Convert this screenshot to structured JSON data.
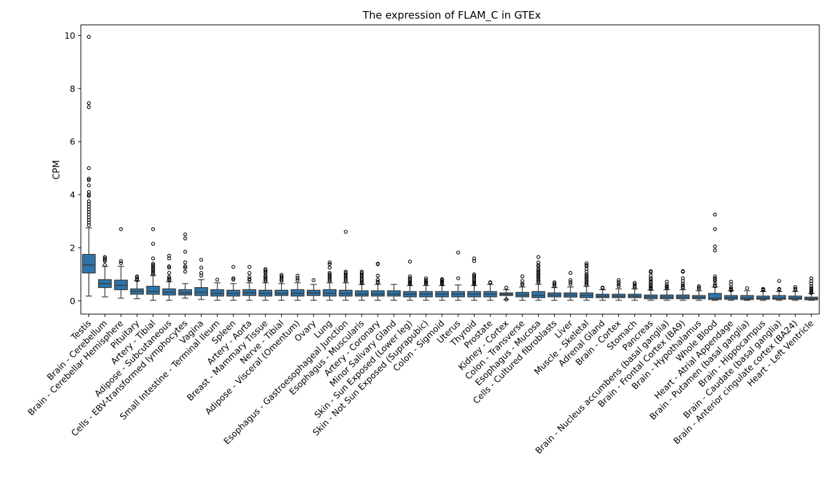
{
  "chart_data": {
    "type": "box",
    "title": "The expression of FLAM_C in GTEx",
    "xlabel": "",
    "ylabel": "CPM",
    "ylim": [
      -0.5,
      10.4
    ],
    "yticks": [
      0,
      2,
      4,
      6,
      8,
      10
    ],
    "grid": false,
    "legend": "none",
    "box_color": "#2e74aa",
    "edge_color": "#3a3a3a",
    "categories": [
      "Testis",
      "Brain - Cerebellum",
      "Brain - Cerebellar Hemisphere",
      "Pituitary",
      "Artery - Tibial",
      "Adipose - Subcutaneous",
      "Cells - EBV-transformed lymphocytes",
      "Vagina",
      "Small Intestine - Terminal Ileum",
      "Spleen",
      "Artery - Aorta",
      "Breast - Mammary Tissue",
      "Nerve - Tibial",
      "Adipose - Visceral (Omentum)",
      "Ovary",
      "Lung",
      "Esophagus - Gastroesophageal Junction",
      "Esophagus - Muscularis",
      "Artery - Coronary",
      "Minor Salivary Gland",
      "Skin - Sun Exposed (Lower leg)",
      "Skin - Not Sun Exposed (Suprapubic)",
      "Colon - Sigmoid",
      "Uterus",
      "Thyroid",
      "Prostate",
      "Kidney - Cortex",
      "Colon - Transverse",
      "Esophagus - Mucosa",
      "Cells - Cultured fibroblasts",
      "Liver",
      "Muscle - Skeletal",
      "Adrenal Gland",
      "Brain - Cortex",
      "Stomach",
      "Pancreas",
      "Brain - Nucleus accumbens (basal ganglia)",
      "Brain - Frontal Cortex (BA9)",
      "Brain - Hypothalamus",
      "Whole Blood",
      "Heart - Atrial Appendage",
      "Brain - Putamen (basal ganglia)",
      "Brain - Hippocampus",
      "Brain - Caudate (basal ganglia)",
      "Brain - Anterior cingulate cortex (BA24)",
      "Heart - Left Ventricle"
    ],
    "boxes": [
      {
        "whislo": 0.18,
        "q1": 1.05,
        "med": 1.35,
        "q3": 1.75,
        "whishi": 2.75,
        "fliers": [
          9.95,
          7.45,
          7.3,
          5.0,
          4.6,
          4.55,
          4.35,
          4.1,
          4.0,
          3.95,
          3.75,
          3.65,
          3.55,
          3.45,
          3.35,
          3.25,
          3.15,
          3.05,
          2.95,
          2.85
        ]
      },
      {
        "whislo": 0.15,
        "q1": 0.5,
        "med": 0.65,
        "q3": 0.8,
        "whishi": 1.3,
        "fliers": [
          1.65,
          1.6,
          1.55,
          1.5,
          1.35
        ]
      },
      {
        "whislo": 0.1,
        "q1": 0.42,
        "med": 0.58,
        "q3": 0.78,
        "whishi": 1.3,
        "fliers": [
          2.7,
          1.5,
          1.42
        ]
      },
      {
        "whislo": 0.08,
        "q1": 0.25,
        "med": 0.35,
        "q3": 0.45,
        "whishi": 0.75,
        "fliers": [
          0.92,
          0.88,
          0.82,
          0.78
        ]
      },
      {
        "whislo": 0.02,
        "q1": 0.25,
        "med": 0.35,
        "q3": 0.55,
        "whishi": 0.95,
        "fliers": [
          2.7,
          2.15,
          1.6,
          1.4,
          1.35,
          1.3,
          1.25,
          1.2,
          1.15,
          1.1,
          1.05,
          1.0
        ]
      },
      {
        "whislo": 0.02,
        "q1": 0.22,
        "med": 0.32,
        "q3": 0.45,
        "whishi": 0.72,
        "fliers": [
          1.7,
          1.6,
          1.3,
          1.25,
          1.05,
          0.9,
          0.85,
          0.8,
          0.78
        ]
      },
      {
        "whislo": 0.1,
        "q1": 0.22,
        "med": 0.3,
        "q3": 0.42,
        "whishi": 0.65,
        "fliers": [
          2.5,
          2.35,
          1.85,
          1.45,
          1.3,
          1.25,
          1.1
        ]
      },
      {
        "whislo": 0.05,
        "q1": 0.2,
        "med": 0.32,
        "q3": 0.5,
        "whishi": 0.8,
        "fliers": [
          1.55,
          1.25,
          1.05,
          0.95
        ]
      },
      {
        "whislo": 0.02,
        "q1": 0.18,
        "med": 0.28,
        "q3": 0.42,
        "whishi": 0.68,
        "fliers": [
          0.8
        ]
      },
      {
        "whislo": 0.02,
        "q1": 0.18,
        "med": 0.28,
        "q3": 0.4,
        "whishi": 0.65,
        "fliers": [
          1.28,
          0.85,
          0.8
        ]
      },
      {
        "whislo": 0.02,
        "q1": 0.2,
        "med": 0.3,
        "q3": 0.42,
        "whishi": 0.68,
        "fliers": [
          1.28,
          1.05,
          0.9,
          0.82,
          0.78
        ]
      },
      {
        "whislo": 0.02,
        "q1": 0.18,
        "med": 0.28,
        "q3": 0.4,
        "whishi": 0.68,
        "fliers": [
          1.2,
          1.15,
          1.1,
          1.05,
          0.95,
          0.9,
          0.85,
          0.8,
          0.75
        ]
      },
      {
        "whislo": 0.02,
        "q1": 0.2,
        "med": 0.28,
        "q3": 0.4,
        "whishi": 0.65,
        "fliers": [
          0.98,
          0.92,
          0.85,
          0.8,
          0.75
        ]
      },
      {
        "whislo": 0.02,
        "q1": 0.18,
        "med": 0.28,
        "q3": 0.42,
        "whishi": 0.68,
        "fliers": [
          0.95,
          0.85,
          0.78
        ]
      },
      {
        "whislo": 0.02,
        "q1": 0.2,
        "med": 0.3,
        "q3": 0.4,
        "whishi": 0.62,
        "fliers": [
          0.78
        ]
      },
      {
        "whislo": 0.02,
        "q1": 0.18,
        "med": 0.28,
        "q3": 0.42,
        "whishi": 0.68,
        "fliers": [
          1.45,
          1.38,
          1.25,
          1.05,
          1.0,
          0.95,
          0.9,
          0.85,
          0.8,
          0.75
        ]
      },
      {
        "whislo": 0.02,
        "q1": 0.18,
        "med": 0.28,
        "q3": 0.4,
        "whishi": 0.68,
        "fliers": [
          2.6,
          1.1,
          1.05,
          0.98,
          0.92,
          0.85,
          0.8,
          0.75
        ]
      },
      {
        "whislo": 0.02,
        "q1": 0.18,
        "med": 0.26,
        "q3": 0.38,
        "whishi": 0.62,
        "fliers": [
          1.1,
          1.05,
          0.98,
          0.92,
          0.85,
          0.8,
          0.75,
          0.7,
          0.66
        ]
      },
      {
        "whislo": 0.02,
        "q1": 0.18,
        "med": 0.26,
        "q3": 0.38,
        "whishi": 0.62,
        "fliers": [
          1.4,
          1.38,
          0.95,
          0.8,
          0.72,
          0.68
        ]
      },
      {
        "whislo": 0.02,
        "q1": 0.18,
        "med": 0.26,
        "q3": 0.38,
        "whishi": 0.62,
        "fliers": []
      },
      {
        "whislo": 0.02,
        "q1": 0.15,
        "med": 0.25,
        "q3": 0.35,
        "whishi": 0.58,
        "fliers": [
          1.48,
          0.92,
          0.85,
          0.8,
          0.75,
          0.7,
          0.66,
          0.62
        ]
      },
      {
        "whislo": 0.02,
        "q1": 0.15,
        "med": 0.25,
        "q3": 0.35,
        "whishi": 0.58,
        "fliers": [
          0.85,
          0.78,
          0.72,
          0.68,
          0.64
        ]
      },
      {
        "whislo": 0.02,
        "q1": 0.15,
        "med": 0.25,
        "q3": 0.35,
        "whishi": 0.58,
        "fliers": [
          0.82,
          0.78,
          0.74,
          0.7,
          0.66,
          0.62
        ]
      },
      {
        "whislo": 0.02,
        "q1": 0.15,
        "med": 0.25,
        "q3": 0.35,
        "whishi": 0.6,
        "fliers": [
          1.82,
          0.85
        ]
      },
      {
        "whislo": 0.02,
        "q1": 0.15,
        "med": 0.25,
        "q3": 0.35,
        "whishi": 0.58,
        "fliers": [
          1.6,
          1.5,
          1.0,
          0.95,
          0.9,
          0.85,
          0.8,
          0.75,
          0.7,
          0.66,
          0.62
        ]
      },
      {
        "whislo": 0.02,
        "q1": 0.15,
        "med": 0.25,
        "q3": 0.35,
        "whishi": 0.62,
        "fliers": [
          0.7,
          0.68
        ]
      },
      {
        "whislo": 0.05,
        "q1": 0.2,
        "med": 0.25,
        "q3": 0.3,
        "whishi": 0.42,
        "fliers": [
          0.5,
          0.05
        ]
      },
      {
        "whislo": 0.02,
        "q1": 0.15,
        "med": 0.22,
        "q3": 0.32,
        "whishi": 0.52,
        "fliers": [
          0.92,
          0.75,
          0.65,
          0.6
        ]
      },
      {
        "whislo": 0.02,
        "q1": 0.12,
        "med": 0.2,
        "q3": 0.35,
        "whishi": 0.62,
        "fliers": [
          1.65,
          1.45,
          1.35,
          1.3,
          1.2,
          1.15,
          1.1,
          1.05,
          1.0,
          0.95,
          0.9,
          0.85,
          0.8,
          0.75,
          0.7
        ]
      },
      {
        "whislo": 0.02,
        "q1": 0.15,
        "med": 0.22,
        "q3": 0.3,
        "whishi": 0.5,
        "fliers": [
          0.7,
          0.65,
          0.6,
          0.55
        ]
      },
      {
        "whislo": 0.02,
        "q1": 0.14,
        "med": 0.22,
        "q3": 0.3,
        "whishi": 0.52,
        "fliers": [
          1.05,
          0.78,
          0.7,
          0.62
        ]
      },
      {
        "whislo": 0.02,
        "q1": 0.12,
        "med": 0.2,
        "q3": 0.3,
        "whishi": 0.55,
        "fliers": [
          1.42,
          1.35,
          1.3,
          1.2,
          1.1,
          1.0,
          0.95,
          0.9,
          0.85,
          0.8,
          0.75,
          0.7,
          0.65,
          0.6
        ]
      },
      {
        "whislo": 0.02,
        "q1": 0.12,
        "med": 0.18,
        "q3": 0.25,
        "whishi": 0.42,
        "fliers": [
          0.5,
          0.48
        ]
      },
      {
        "whislo": 0.02,
        "q1": 0.12,
        "med": 0.18,
        "q3": 0.25,
        "whishi": 0.45,
        "fliers": [
          0.78,
          0.7,
          0.62,
          0.55
        ]
      },
      {
        "whislo": 0.02,
        "q1": 0.12,
        "med": 0.18,
        "q3": 0.25,
        "whishi": 0.45,
        "fliers": [
          0.68,
          0.62,
          0.55,
          0.5
        ]
      },
      {
        "whislo": 0.02,
        "q1": 0.08,
        "med": 0.15,
        "q3": 0.22,
        "whishi": 0.4,
        "fliers": [
          1.12,
          1.08,
          0.95,
          0.85,
          0.8,
          0.72,
          0.68,
          0.62,
          0.58,
          0.52,
          0.48,
          0.45
        ]
      },
      {
        "whislo": 0.02,
        "q1": 0.08,
        "med": 0.14,
        "q3": 0.22,
        "whishi": 0.42,
        "fliers": [
          0.72,
          0.62,
          0.55,
          0.52,
          0.48
        ]
      },
      {
        "whislo": 0.02,
        "q1": 0.08,
        "med": 0.14,
        "q3": 0.22,
        "whishi": 0.42,
        "fliers": [
          1.12,
          1.1,
          0.85,
          0.75,
          0.65,
          0.58,
          0.52,
          0.48
        ]
      },
      {
        "whislo": 0.02,
        "q1": 0.08,
        "med": 0.13,
        "q3": 0.2,
        "whishi": 0.38,
        "fliers": [
          0.55,
          0.5,
          0.45
        ]
      },
      {
        "whislo": 0.02,
        "q1": 0.05,
        "med": 0.1,
        "q3": 0.28,
        "whishi": 0.52,
        "fliers": [
          3.25,
          2.7,
          2.05,
          1.9,
          0.92,
          0.85,
          0.8,
          0.75,
          0.65,
          0.58,
          0.55
        ]
      },
      {
        "whislo": 0.02,
        "q1": 0.06,
        "med": 0.12,
        "q3": 0.2,
        "whishi": 0.38,
        "fliers": [
          0.72,
          0.62,
          0.5,
          0.45,
          0.42,
          0.4
        ]
      },
      {
        "whislo": 0.02,
        "q1": 0.05,
        "med": 0.1,
        "q3": 0.2,
        "whishi": 0.38,
        "fliers": [
          0.48
        ]
      },
      {
        "whislo": 0.02,
        "q1": 0.06,
        "med": 0.1,
        "q3": 0.18,
        "whishi": 0.35,
        "fliers": [
          0.45,
          0.42,
          0.4
        ]
      },
      {
        "whislo": 0.02,
        "q1": 0.06,
        "med": 0.1,
        "q3": 0.2,
        "whishi": 0.35,
        "fliers": [
          0.75,
          0.45,
          0.42
        ]
      },
      {
        "whislo": 0.02,
        "q1": 0.06,
        "med": 0.1,
        "q3": 0.18,
        "whishi": 0.35,
        "fliers": [
          0.52,
          0.45,
          0.4
        ]
      },
      {
        "whislo": 0.02,
        "q1": 0.04,
        "med": 0.08,
        "q3": 0.14,
        "whishi": 0.28,
        "fliers": [
          0.85,
          0.75,
          0.65,
          0.55,
          0.48,
          0.42,
          0.38,
          0.34,
          0.3
        ]
      }
    ]
  }
}
